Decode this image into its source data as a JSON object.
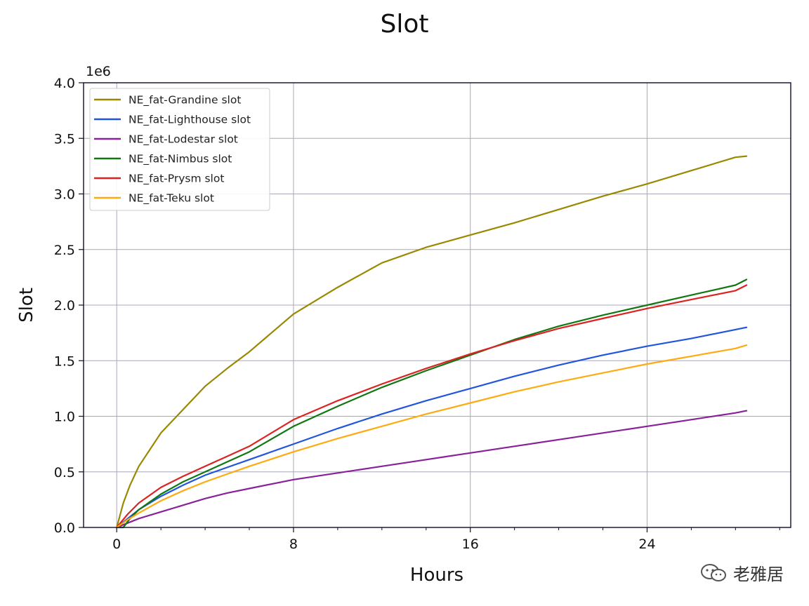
{
  "chart_data": {
    "type": "line",
    "title": "Slot",
    "xlabel": "Hours",
    "ylabel": "Slot",
    "y_offset_label": "1e6",
    "xlim": [
      -1.5,
      30.5
    ],
    "ylim": [
      0,
      4.0
    ],
    "x_ticks": [
      0,
      8,
      16,
      24
    ],
    "x_tick_labels": [
      "0",
      "8",
      "16",
      "24"
    ],
    "x_minor_ticks": [
      2,
      4,
      6,
      10,
      12,
      14,
      18,
      20,
      22,
      26,
      28,
      30
    ],
    "y_ticks": [
      0,
      0.5,
      1.0,
      1.5,
      2.0,
      2.5,
      3.0,
      3.5,
      4.0
    ],
    "y_tick_labels": [
      "0.0",
      "0.5",
      "1.0",
      "1.5",
      "2.0",
      "2.5",
      "3.0",
      "3.5",
      "4.0"
    ],
    "grid": true,
    "legend_position": "top-left",
    "series": [
      {
        "name": "NE_fat-Grandine slot",
        "color": "#998800",
        "x": [
          0,
          0.3,
          0.6,
          1,
          2,
          3,
          4,
          5,
          6,
          8,
          10,
          12,
          14,
          16,
          18,
          20,
          22,
          24,
          26,
          28,
          28.5
        ],
        "y": [
          0,
          0.22,
          0.38,
          0.55,
          0.85,
          1.06,
          1.27,
          1.43,
          1.58,
          1.92,
          2.16,
          2.38,
          2.52,
          2.63,
          2.74,
          2.86,
          2.98,
          3.09,
          3.21,
          3.33,
          3.34
        ]
      },
      {
        "name": "NE_fat-Lighthouse slot",
        "color": "#2255dd",
        "x": [
          0,
          0.5,
          1,
          2,
          3,
          4,
          5,
          6,
          8,
          10,
          12,
          14,
          16,
          18,
          20,
          22,
          24,
          26,
          28,
          28.5
        ],
        "y": [
          0,
          0.08,
          0.16,
          0.28,
          0.38,
          0.47,
          0.54,
          0.61,
          0.75,
          0.89,
          1.02,
          1.14,
          1.25,
          1.36,
          1.46,
          1.55,
          1.63,
          1.7,
          1.78,
          1.8
        ]
      },
      {
        "name": "NE_fat-Lodestar slot",
        "color": "#882299",
        "x": [
          0,
          0.5,
          1,
          2,
          3,
          4,
          5,
          6,
          8,
          10,
          12,
          14,
          16,
          18,
          20,
          22,
          24,
          26,
          28,
          28.5
        ],
        "y": [
          0,
          0.04,
          0.08,
          0.14,
          0.2,
          0.26,
          0.31,
          0.35,
          0.43,
          0.49,
          0.55,
          0.61,
          0.67,
          0.73,
          0.79,
          0.85,
          0.91,
          0.97,
          1.03,
          1.05
        ]
      },
      {
        "name": "NE_fat-Nimbus slot",
        "color": "#117711",
        "x": [
          0,
          0.3,
          0.6,
          1,
          2,
          3,
          4,
          5,
          6,
          8,
          10,
          12,
          14,
          16,
          18,
          20,
          22,
          24,
          26,
          28,
          28.5
        ],
        "y": [
          0,
          0.0,
          0.08,
          0.16,
          0.3,
          0.41,
          0.5,
          0.59,
          0.68,
          0.91,
          1.09,
          1.26,
          1.41,
          1.55,
          1.69,
          1.81,
          1.91,
          2.0,
          2.09,
          2.18,
          2.23
        ]
      },
      {
        "name": "NE_fat-Prysm slot",
        "color": "#dd2222",
        "x": [
          0,
          0.5,
          1,
          2,
          3,
          4,
          5,
          6,
          8,
          10,
          12,
          14,
          16,
          18,
          20,
          22,
          24,
          26,
          28,
          28.5
        ],
        "y": [
          0,
          0.12,
          0.22,
          0.36,
          0.46,
          0.55,
          0.64,
          0.73,
          0.97,
          1.14,
          1.29,
          1.43,
          1.56,
          1.68,
          1.79,
          1.88,
          1.97,
          2.05,
          2.13,
          2.18
        ]
      },
      {
        "name": "NE_fat-Teku slot",
        "color": "#ffaa11",
        "x": [
          0,
          0.5,
          1,
          2,
          3,
          4,
          5,
          6,
          8,
          10,
          12,
          14,
          16,
          18,
          20,
          22,
          24,
          26,
          28,
          28.5
        ],
        "y": [
          0,
          0.07,
          0.13,
          0.24,
          0.33,
          0.41,
          0.48,
          0.55,
          0.68,
          0.8,
          0.91,
          1.02,
          1.12,
          1.22,
          1.31,
          1.39,
          1.47,
          1.54,
          1.61,
          1.64
        ]
      }
    ]
  },
  "watermark": {
    "icon": "wechat-icon",
    "text": "老雅居"
  }
}
